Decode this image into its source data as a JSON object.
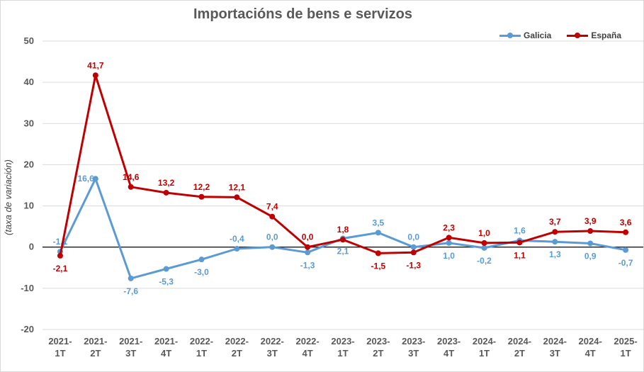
{
  "chart_data": {
    "type": "line",
    "title": "Importacións  de bens e servizos",
    "ylabel": "(taxa de variación)",
    "xlabel": "",
    "ylim": [
      -20,
      50
    ],
    "yticks": [
      50,
      40,
      30,
      20,
      10,
      0,
      -10,
      -20
    ],
    "grid": true,
    "legend_position": "top-right",
    "categories": [
      [
        "2021-",
        "1T"
      ],
      [
        "2021-",
        "2T"
      ],
      [
        "2021-",
        "3T"
      ],
      [
        "2021-",
        "4T"
      ],
      [
        "2022-",
        "1T"
      ],
      [
        "2022-",
        "2T"
      ],
      [
        "2022-",
        "3T"
      ],
      [
        "2022-",
        "4T"
      ],
      [
        "2023-",
        "1T"
      ],
      [
        "2023-",
        "2T"
      ],
      [
        "2023-",
        "3T"
      ],
      [
        "2023-",
        "4T"
      ],
      [
        "2024-",
        "1T"
      ],
      [
        "2024-",
        "2T"
      ],
      [
        "2024-",
        "3T"
      ],
      [
        "2024-",
        "4T"
      ],
      [
        "2025-",
        "1T"
      ]
    ],
    "series": [
      {
        "name": "Galicia",
        "color": "#5b9bd5",
        "values": [
          -1.1,
          16.6,
          -7.6,
          -5.3,
          -3.0,
          -0.4,
          0.0,
          -1.3,
          2.1,
          3.5,
          0.0,
          1.0,
          -0.2,
          1.6,
          1.3,
          0.9,
          -0.7
        ],
        "labels": [
          "-1,1",
          "16,6",
          "-7,6",
          "-5,3",
          "-3,0",
          "-0,4",
          "0,0",
          "-1,3",
          "2,1",
          "3,5",
          "0,0",
          "1,0",
          "-0,2",
          "1,6",
          "1,3",
          "0,9",
          "-0,7"
        ],
        "label_pos": [
          "above",
          "left",
          "below",
          "below",
          "below",
          "above",
          "above",
          "below",
          "below",
          "above",
          "above",
          "below",
          "below",
          "above",
          "below",
          "below",
          "below"
        ]
      },
      {
        "name": "España",
        "color": "#c00000",
        "values": [
          -2.1,
          41.7,
          14.6,
          13.2,
          12.2,
          12.1,
          7.4,
          0.0,
          1.8,
          -1.5,
          -1.3,
          2.3,
          1.0,
          1.1,
          3.7,
          3.9,
          3.6
        ],
        "labels": [
          "-2,1",
          "41,7",
          "14,6",
          "13,2",
          "12,2",
          "12,1",
          "7,4",
          "0,0",
          "1,8",
          "-1,5",
          "-1,3",
          "2,3",
          "1,0",
          "1,1",
          "3,7",
          "3,9",
          "3,6"
        ],
        "label_pos": [
          "below",
          "above",
          "above",
          "above",
          "above",
          "above",
          "above",
          "above",
          "above",
          "below",
          "below",
          "above",
          "above",
          "below",
          "above",
          "above",
          "above"
        ]
      }
    ]
  }
}
